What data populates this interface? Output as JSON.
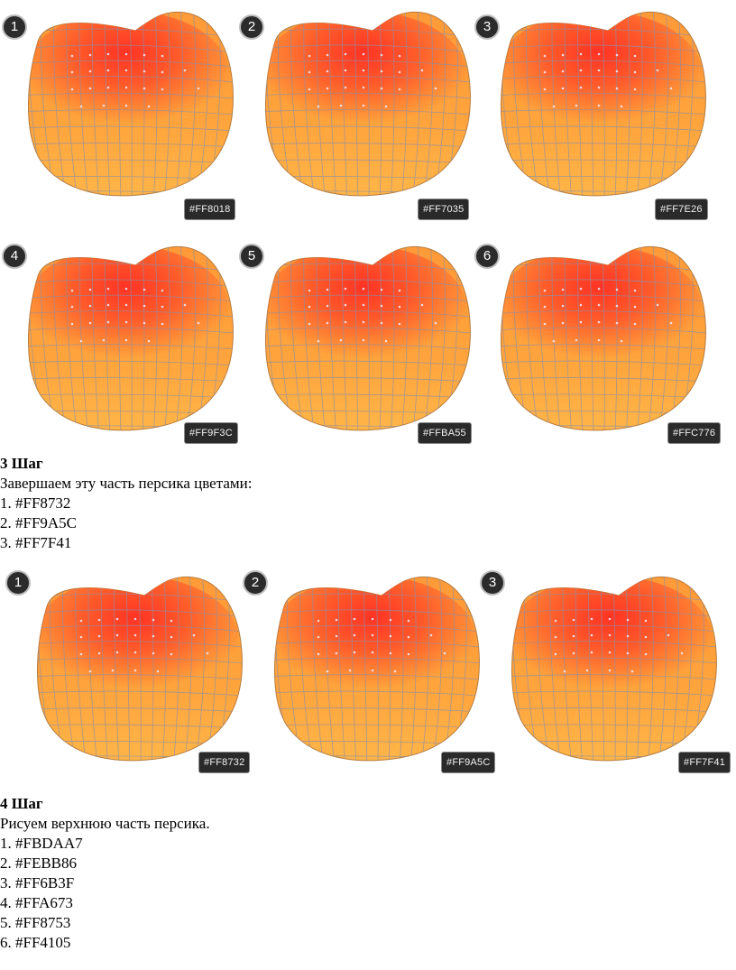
{
  "grid1": [
    {
      "num": "1",
      "color": "#FF8018"
    },
    {
      "num": "2",
      "color": "#FF7035"
    },
    {
      "num": "3",
      "color": "#FF7E26"
    },
    {
      "num": "4",
      "color": "#FF9F3C"
    },
    {
      "num": "5",
      "color": "#FFBA55"
    },
    {
      "num": "6",
      "color": "#FFC776"
    }
  ],
  "step3": {
    "title": "3 Шаг",
    "text": "Завершаем эту часть персика цветами:",
    "items": [
      "1.  #FF8732",
      "2.  #FF9A5C",
      "3.  #FF7F41"
    ]
  },
  "grid2": [
    {
      "num": "1",
      "color": "#FF8732"
    },
    {
      "num": "2",
      "color": "#FF9A5C"
    },
    {
      "num": "3",
      "color": "#FF7F41"
    }
  ],
  "step4": {
    "title": "4 Шаг",
    "text": "Рисуем верхнюю часть персика.",
    "items": [
      "1.  #FBDAA7",
      "2.  #FEBB86",
      "3.  #FF6B3F",
      "4.  #FFA673",
      "5.  #FF8753",
      "6.  #FF4105"
    ]
  }
}
